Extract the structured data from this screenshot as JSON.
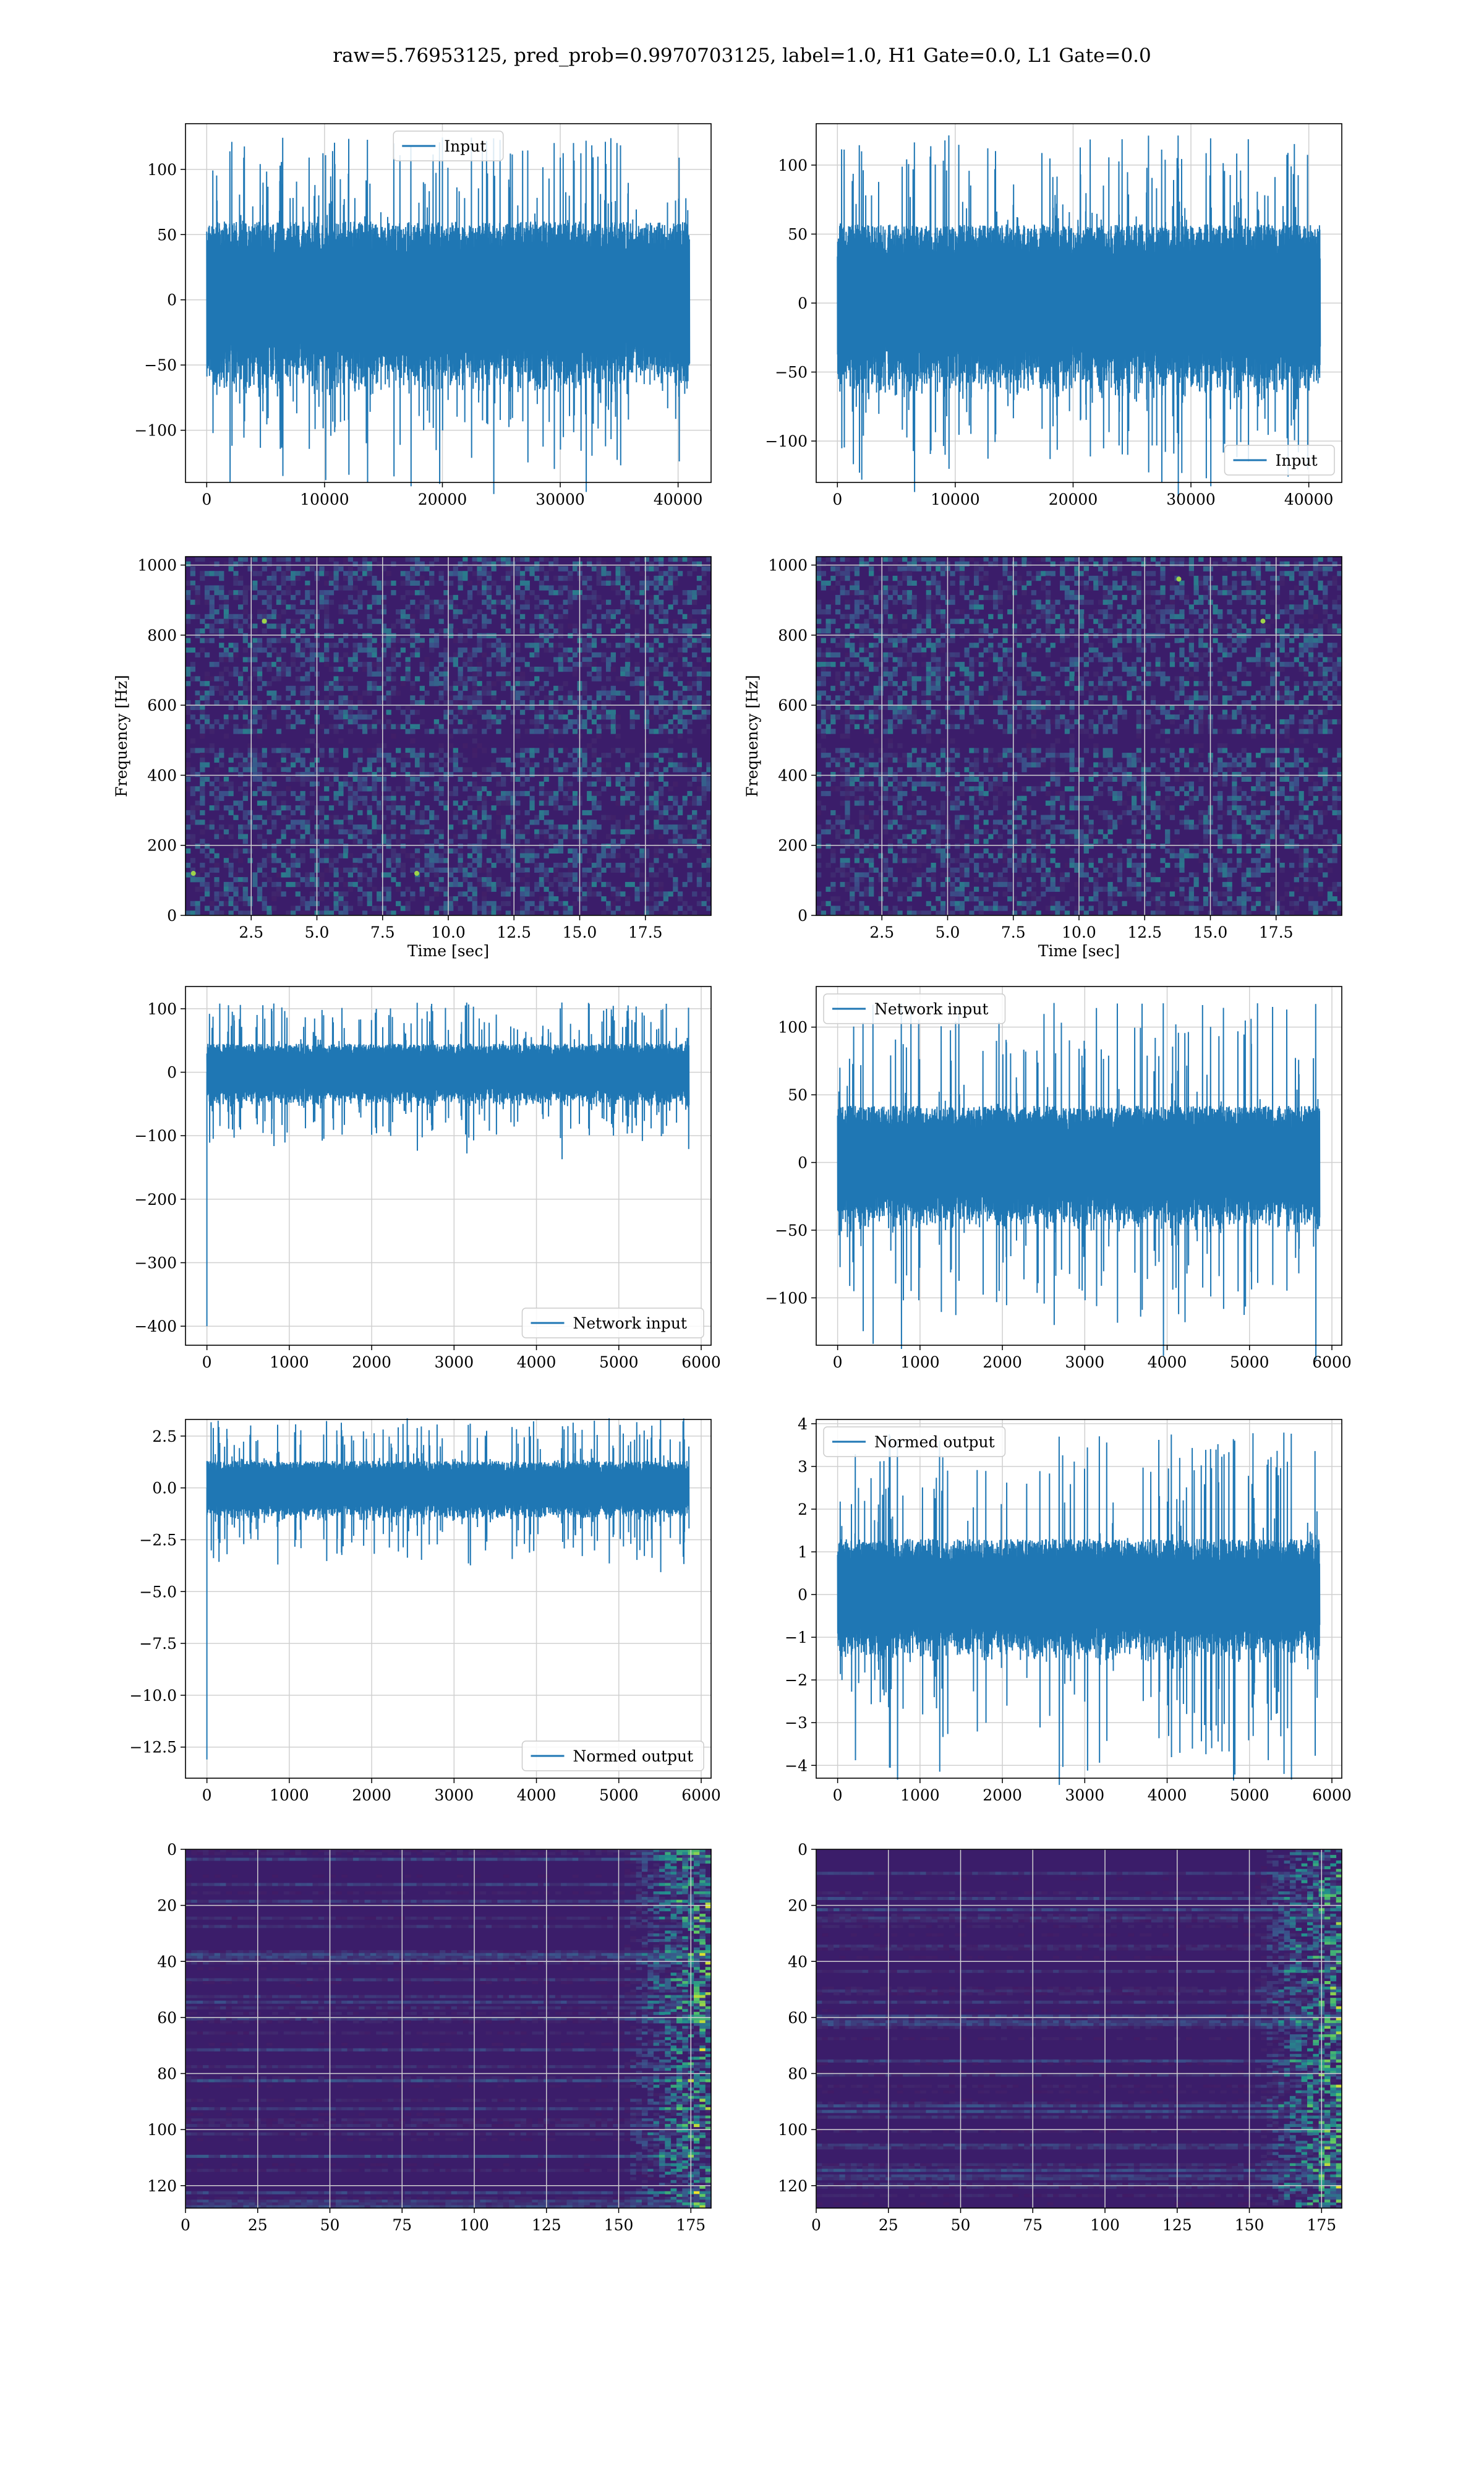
{
  "figure": {
    "title": "raw=5.76953125, pred_prob=0.9970703125, label=1.0, H1 Gate=0.0, L1 Gate=0.0"
  },
  "colors": {
    "line": "#1f77b4",
    "grid": "#d0d0d0",
    "spec_bg": "#3b1d6a",
    "spec_dark": "#2a0f4e"
  },
  "chart_data": [
    {
      "id": "p1",
      "type": "line",
      "row": 0,
      "col": 0,
      "legend": {
        "label": "Input",
        "loc": "upper center"
      },
      "xlim": [
        -1800,
        42800
      ],
      "ylim": [
        -140,
        135
      ],
      "xticks": [
        0,
        10000,
        20000,
        30000,
        40000
      ],
      "xticklabels": [
        "0",
        "10000",
        "20000",
        "30000",
        "40000"
      ],
      "yticks": [
        -100,
        -50,
        0,
        50,
        100
      ],
      "yticklabels": [
        "−100",
        "−50",
        "0",
        "50",
        "100"
      ],
      "signal": {
        "x_start": 0,
        "x_end": 40960,
        "body_amp": 60,
        "peak_amp": 125,
        "spike_at_start": null
      }
    },
    {
      "id": "p2",
      "type": "line",
      "row": 0,
      "col": 1,
      "legend": {
        "label": "Input",
        "loc": "lower right"
      },
      "xlim": [
        -1800,
        42800
      ],
      "ylim": [
        -130,
        130
      ],
      "xticks": [
        0,
        10000,
        20000,
        30000,
        40000
      ],
      "xticklabels": [
        "0",
        "10000",
        "20000",
        "30000",
        "40000"
      ],
      "yticks": [
        -100,
        -50,
        0,
        50,
        100
      ],
      "yticklabels": [
        "−100",
        "−50",
        "0",
        "50",
        "100"
      ],
      "signal": {
        "x_start": 0,
        "x_end": 40960,
        "body_amp": 57,
        "peak_amp": 122,
        "spike_at_start": null
      }
    },
    {
      "id": "p3",
      "type": "heatmap",
      "row": 1,
      "col": 0,
      "xlabel": "Time [sec]",
      "ylabel": "Frequency [Hz]",
      "xlim": [
        0,
        20
      ],
      "ylim": [
        0,
        1024
      ],
      "xticks": [
        2.5,
        5,
        7.5,
        10,
        12.5,
        15,
        17.5
      ],
      "xticklabels": [
        "2.5",
        "5.0",
        "7.5",
        "10.0",
        "12.5",
        "15.0",
        "17.5"
      ],
      "yticks": [
        0,
        200,
        400,
        600,
        800,
        1000
      ],
      "yticklabels": [
        "0",
        "200",
        "400",
        "600",
        "800",
        "1000"
      ],
      "dark_band_hz": [
        480,
        520
      ],
      "bright_spots": [
        [
          3.0,
          840
        ],
        [
          0.3,
          120
        ],
        [
          8.8,
          120
        ]
      ]
    },
    {
      "id": "p4",
      "type": "heatmap",
      "row": 1,
      "col": 1,
      "xlabel": "Time [sec]",
      "ylabel": "Frequency [Hz]",
      "xlim": [
        0,
        20
      ],
      "ylim": [
        0,
        1024
      ],
      "xticks": [
        2.5,
        5,
        7.5,
        10,
        12.5,
        15,
        17.5
      ],
      "xticklabels": [
        "2.5",
        "5.0",
        "7.5",
        "10.0",
        "12.5",
        "15.0",
        "17.5"
      ],
      "yticks": [
        0,
        200,
        400,
        600,
        800,
        1000
      ],
      "yticklabels": [
        "0",
        "200",
        "400",
        "600",
        "800",
        "1000"
      ],
      "dark_band_hz": [
        480,
        520
      ],
      "bright_spots": [
        [
          17.0,
          840
        ],
        [
          13.8,
          960
        ]
      ]
    },
    {
      "id": "p5",
      "type": "line",
      "row": 2,
      "col": 0,
      "legend": {
        "label": "Network input",
        "loc": "lower right"
      },
      "xlim": [
        -260,
        6120
      ],
      "ylim": [
        -430,
        135
      ],
      "xticks": [
        0,
        1000,
        2000,
        3000,
        4000,
        5000,
        6000
      ],
      "xticklabels": [
        "0",
        "1000",
        "2000",
        "3000",
        "4000",
        "5000",
        "6000"
      ],
      "yticks": [
        -400,
        -300,
        -200,
        -100,
        0,
        100
      ],
      "yticklabels": [
        "−400",
        "−300",
        "−200",
        "−100",
        "0",
        "100"
      ],
      "signal": {
        "x_start": 0,
        "x_end": 5850,
        "body_amp": 45,
        "peak_amp": 110,
        "spike_at_start": -400
      }
    },
    {
      "id": "p6",
      "type": "line",
      "row": 2,
      "col": 1,
      "legend": {
        "label": "Network input",
        "loc": "upper left"
      },
      "xlim": [
        -260,
        6120
      ],
      "ylim": [
        -135,
        130
      ],
      "xticks": [
        0,
        1000,
        2000,
        3000,
        4000,
        5000,
        6000
      ],
      "xticklabels": [
        "0",
        "1000",
        "2000",
        "3000",
        "4000",
        "5000",
        "6000"
      ],
      "yticks": [
        -100,
        -50,
        0,
        50,
        100
      ],
      "yticklabels": [
        "−100",
        "−50",
        "0",
        "50",
        "100"
      ],
      "signal": {
        "x_start": 0,
        "x_end": 5850,
        "body_amp": 42,
        "peak_amp": 118,
        "spike_at_start": null
      }
    },
    {
      "id": "p7",
      "type": "line",
      "row": 3,
      "col": 0,
      "legend": {
        "label": "Normed output",
        "loc": "lower right"
      },
      "xlim": [
        -260,
        6120
      ],
      "ylim": [
        -14,
        3.3
      ],
      "xticks": [
        0,
        1000,
        2000,
        3000,
        4000,
        5000,
        6000
      ],
      "xticklabels": [
        "0",
        "1000",
        "2000",
        "3000",
        "4000",
        "5000",
        "6000"
      ],
      "yticks": [
        -12.5,
        -10,
        -7.5,
        -5,
        -2.5,
        0,
        2.5
      ],
      "yticklabels": [
        "−12.5",
        "−10.0",
        "−7.5",
        "−5.0",
        "−2.5",
        "0.0",
        "2.5"
      ],
      "signal": {
        "x_start": 0,
        "x_end": 5850,
        "body_amp": 1.3,
        "peak_amp": 3.4,
        "spike_at_start": -13.1
      }
    },
    {
      "id": "p8",
      "type": "line",
      "row": 3,
      "col": 1,
      "legend": {
        "label": "Normed output",
        "loc": "upper left"
      },
      "xlim": [
        -260,
        6120
      ],
      "ylim": [
        -4.3,
        4.1
      ],
      "xticks": [
        0,
        1000,
        2000,
        3000,
        4000,
        5000,
        6000
      ],
      "xticklabels": [
        "0",
        "1000",
        "2000",
        "3000",
        "4000",
        "5000",
        "6000"
      ],
      "yticks": [
        -4,
        -3,
        -2,
        -1,
        0,
        1,
        2,
        3,
        4
      ],
      "yticklabels": [
        "−4",
        "−3",
        "−2",
        "−1",
        "0",
        "1",
        "2",
        "3",
        "4"
      ],
      "signal": {
        "x_start": 0,
        "x_end": 5850,
        "body_amp": 1.3,
        "peak_amp": 3.8,
        "spike_at_start": null
      }
    },
    {
      "id": "p9",
      "type": "heatmap",
      "row": 4,
      "col": 0,
      "xlim": [
        0,
        182
      ],
      "ylim": [
        128,
        0
      ],
      "xticks": [
        0,
        25,
        50,
        75,
        100,
        125,
        150,
        175
      ],
      "xticklabels": [
        "0",
        "25",
        "50",
        "75",
        "100",
        "125",
        "150",
        "175"
      ],
      "yticks": [
        0,
        20,
        40,
        60,
        80,
        100,
        120
      ],
      "yticklabels": [
        "0",
        "20",
        "40",
        "60",
        "80",
        "100",
        "120"
      ],
      "bright_region_x": [
        150,
        182
      ]
    },
    {
      "id": "p10",
      "type": "heatmap",
      "row": 4,
      "col": 1,
      "xlim": [
        0,
        182
      ],
      "ylim": [
        128,
        0
      ],
      "xticks": [
        0,
        25,
        50,
        75,
        100,
        125,
        150,
        175
      ],
      "xticklabels": [
        "0",
        "25",
        "50",
        "75",
        "100",
        "125",
        "150",
        "175"
      ],
      "yticks": [
        0,
        20,
        40,
        60,
        80,
        100,
        120
      ],
      "yticklabels": [
        "0",
        "20",
        "40",
        "60",
        "80",
        "100",
        "120"
      ],
      "bright_region_x": [
        150,
        182
      ]
    }
  ]
}
